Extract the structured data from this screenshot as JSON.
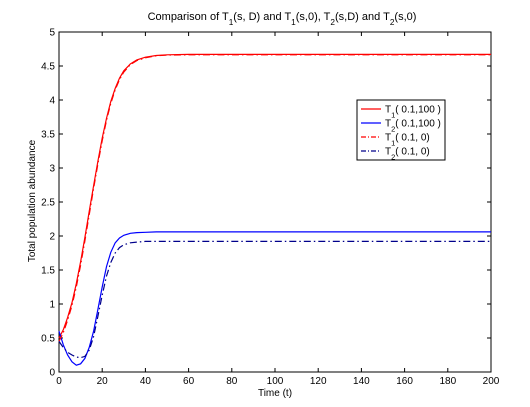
{
  "chart_data": {
    "type": "line",
    "title": "Comparison of T_1(s, D) and T_1(s,0), T_2(s,D) and T_2(s,0)",
    "title_parts": [
      {
        "t": "Comparison of T"
      },
      {
        "t": "1",
        "sub": true
      },
      {
        "t": "(s, D) and T"
      },
      {
        "t": "1",
        "sub": true
      },
      {
        "t": "(s,0), T"
      },
      {
        "t": "2",
        "sub": true
      },
      {
        "t": "(s,D) and T"
      },
      {
        "t": "2",
        "sub": true
      },
      {
        "t": "(s,0)"
      }
    ],
    "xlabel": "Time (t)",
    "ylabel": "Total population abundance",
    "xlim": [
      0,
      200
    ],
    "ylim": [
      0,
      5
    ],
    "xticks": [
      0,
      20,
      40,
      60,
      80,
      100,
      120,
      140,
      160,
      180,
      200
    ],
    "yticks": [
      0,
      0.5,
      1,
      1.5,
      2,
      2.5,
      3,
      3.5,
      4,
      4.5,
      5
    ],
    "grid": false,
    "legend_position": "upper-right",
    "series": [
      {
        "name": "T_1( 0.1,100 )",
        "legend_parts": [
          {
            "t": "T"
          },
          {
            "t": "1",
            "sub": true
          },
          {
            "t": "( 0.1,100 )"
          }
        ],
        "color": "#ff0000",
        "style": "solid",
        "x": [
          0,
          2,
          4,
          6,
          8,
          10,
          12,
          14,
          16,
          18,
          20,
          22,
          24,
          26,
          28,
          30,
          33,
          36,
          40,
          45,
          50,
          60,
          80,
          100,
          150,
          200
        ],
        "y": [
          0.5,
          0.62,
          0.8,
          1.02,
          1.3,
          1.62,
          1.98,
          2.36,
          2.74,
          3.1,
          3.44,
          3.73,
          3.98,
          4.17,
          4.32,
          4.43,
          4.53,
          4.59,
          4.63,
          4.655,
          4.665,
          4.67,
          4.67,
          4.67,
          4.67,
          4.67
        ]
      },
      {
        "name": "T_2( 0.1,100 )",
        "legend_parts": [
          {
            "t": "T"
          },
          {
            "t": "2",
            "sub": true
          },
          {
            "t": "( 0.1,100 )"
          }
        ],
        "color": "#0000ff",
        "style": "solid",
        "x": [
          0,
          2,
          4,
          6,
          8,
          10,
          12,
          14,
          16,
          18,
          20,
          22,
          24,
          26,
          28,
          30,
          33,
          36,
          40,
          45,
          50,
          60,
          80,
          100,
          150,
          200
        ],
        "y": [
          0.6,
          0.4,
          0.25,
          0.15,
          0.1,
          0.12,
          0.2,
          0.36,
          0.6,
          0.92,
          1.25,
          1.55,
          1.76,
          1.9,
          1.97,
          2.01,
          2.04,
          2.05,
          2.055,
          2.06,
          2.06,
          2.06,
          2.06,
          2.06,
          2.06,
          2.06
        ]
      },
      {
        "name": "T_1( 0.1, 0)",
        "legend_parts": [
          {
            "t": "T"
          },
          {
            "t": "1",
            "sub": true
          },
          {
            "t": "( 0.1, 0)"
          }
        ],
        "color": "#ff0000",
        "style": "dashdot",
        "x": [
          0,
          2,
          4,
          6,
          8,
          10,
          12,
          14,
          16,
          18,
          20,
          22,
          24,
          26,
          28,
          30,
          33,
          36,
          40,
          45,
          50,
          60,
          80,
          100,
          150,
          200
        ],
        "y": [
          0.45,
          0.58,
          0.76,
          0.98,
          1.25,
          1.57,
          1.93,
          2.31,
          2.7,
          3.06,
          3.4,
          3.7,
          3.95,
          4.15,
          4.3,
          4.41,
          4.52,
          4.58,
          4.62,
          4.65,
          4.66,
          4.665,
          4.665,
          4.665,
          4.665,
          4.665
        ]
      },
      {
        "name": "T_2( 0.1, 0)",
        "legend_parts": [
          {
            "t": "T"
          },
          {
            "t": "2",
            "sub": true
          },
          {
            "t": "( 0.1, 0)"
          }
        ],
        "color": "#00008b",
        "style": "dashdot",
        "x": [
          0,
          2,
          4,
          6,
          8,
          10,
          12,
          14,
          16,
          18,
          20,
          22,
          24,
          26,
          28,
          30,
          33,
          36,
          40,
          45,
          50,
          60,
          80,
          100,
          150,
          200
        ],
        "y": [
          0.45,
          0.36,
          0.29,
          0.25,
          0.22,
          0.21,
          0.23,
          0.32,
          0.52,
          0.82,
          1.13,
          1.41,
          1.61,
          1.75,
          1.83,
          1.87,
          1.9,
          1.91,
          1.92,
          1.92,
          1.92,
          1.92,
          1.92,
          1.92,
          1.92,
          1.92
        ]
      }
    ]
  }
}
